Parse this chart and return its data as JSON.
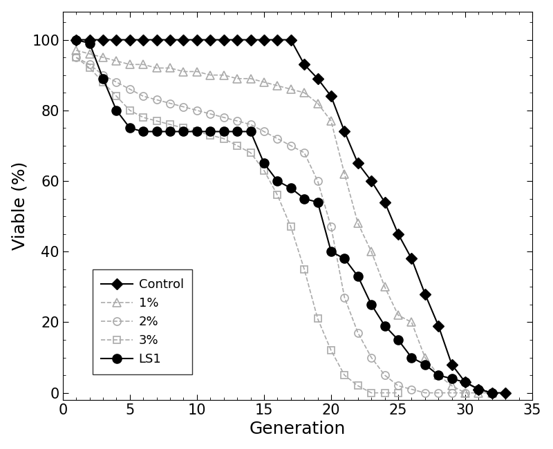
{
  "title": "",
  "xlabel": "Generation",
  "ylabel": "Viable (%)",
  "xlim": [
    0,
    35
  ],
  "ylim": [
    -2,
    108
  ],
  "xticks": [
    0,
    5,
    10,
    15,
    20,
    25,
    30,
    35
  ],
  "yticks": [
    0,
    20,
    40,
    60,
    80,
    100
  ],
  "background_color": "#ffffff",
  "control": {
    "x": [
      1,
      2,
      3,
      4,
      5,
      6,
      7,
      8,
      9,
      10,
      11,
      12,
      13,
      14,
      15,
      16,
      17,
      18,
      19,
      20,
      21,
      22,
      23,
      24,
      25,
      26,
      27,
      28,
      29,
      30,
      31,
      32,
      33
    ],
    "y": [
      100,
      100,
      100,
      100,
      100,
      100,
      100,
      100,
      100,
      100,
      100,
      100,
      100,
      100,
      100,
      100,
      100,
      93,
      89,
      84,
      74,
      65,
      60,
      54,
      45,
      38,
      28,
      19,
      8,
      3,
      1,
      0,
      0
    ],
    "color": "#000000",
    "linestyle": "-",
    "marker": "D",
    "label": "Control",
    "markersize": 8,
    "markerfacecolor": "#000000",
    "linewidth": 1.5
  },
  "pct1": {
    "x": [
      1,
      2,
      3,
      4,
      5,
      6,
      7,
      8,
      9,
      10,
      11,
      12,
      13,
      14,
      15,
      16,
      17,
      18,
      19,
      20,
      21,
      22,
      23,
      24,
      25,
      26,
      27,
      28,
      29,
      30,
      31,
      32
    ],
    "y": [
      97,
      96,
      95,
      94,
      93,
      93,
      92,
      92,
      91,
      91,
      90,
      90,
      89,
      89,
      88,
      87,
      86,
      85,
      82,
      77,
      62,
      48,
      40,
      30,
      22,
      20,
      10,
      5,
      2,
      0,
      0,
      0
    ],
    "color": "#aaaaaa",
    "linestyle": "--",
    "marker": "^",
    "label": "1%",
    "markersize": 8,
    "markerfacecolor": "none",
    "markeredgewidth": 1.2,
    "linewidth": 1.2
  },
  "pct2": {
    "x": [
      1,
      2,
      3,
      4,
      5,
      6,
      7,
      8,
      9,
      10,
      11,
      12,
      13,
      14,
      15,
      16,
      17,
      18,
      19,
      20,
      21,
      22,
      23,
      24,
      25,
      26,
      27,
      28,
      29,
      30
    ],
    "y": [
      95,
      93,
      90,
      88,
      86,
      84,
      83,
      82,
      81,
      80,
      79,
      78,
      77,
      76,
      74,
      72,
      70,
      68,
      60,
      47,
      27,
      17,
      10,
      5,
      2,
      1,
      0,
      0,
      0,
      0
    ],
    "color": "#aaaaaa",
    "linestyle": "--",
    "marker": "o",
    "label": "2%",
    "markersize": 8,
    "markerfacecolor": "none",
    "markeredgewidth": 1.2,
    "linewidth": 1.2
  },
  "pct3": {
    "x": [
      1,
      2,
      3,
      4,
      5,
      6,
      7,
      8,
      9,
      10,
      11,
      12,
      13,
      14,
      15,
      16,
      17,
      18,
      19,
      20,
      21,
      22,
      23,
      24,
      25
    ],
    "y": [
      95,
      92,
      88,
      84,
      80,
      78,
      77,
      76,
      75,
      74,
      73,
      72,
      70,
      68,
      63,
      56,
      47,
      35,
      21,
      12,
      5,
      2,
      0,
      0,
      0
    ],
    "color": "#aaaaaa",
    "linestyle": "--",
    "marker": "s",
    "label": "3%",
    "markersize": 7,
    "markerfacecolor": "none",
    "markeredgewidth": 1.2,
    "linewidth": 1.2
  },
  "ls1": {
    "x": [
      1,
      2,
      3,
      4,
      5,
      6,
      7,
      8,
      9,
      10,
      11,
      12,
      13,
      14,
      15,
      16,
      17,
      18,
      19,
      20,
      21,
      22,
      23,
      24,
      25,
      26,
      27,
      28,
      29,
      30,
      31,
      32
    ],
    "y": [
      100,
      99,
      89,
      80,
      75,
      74,
      74,
      74,
      74,
      74,
      74,
      74,
      74,
      74,
      65,
      60,
      58,
      55,
      54,
      40,
      38,
      33,
      25,
      19,
      15,
      10,
      8,
      5,
      4,
      3,
      1,
      0
    ],
    "color": "#000000",
    "linestyle": "-",
    "marker": "o",
    "label": "LS1",
    "markersize": 9,
    "markerfacecolor": "#000000",
    "markeredgewidth": 1.5,
    "linewidth": 1.5
  }
}
